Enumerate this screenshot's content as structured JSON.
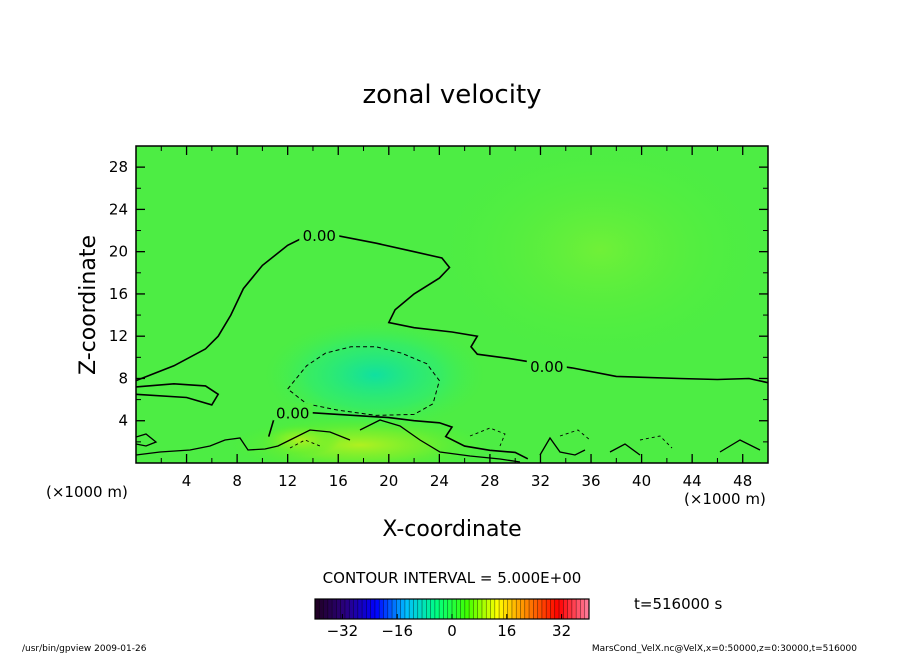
{
  "chart_data": {
    "type": "heatmap",
    "title": "zonal velocity",
    "xlabel": "X-coordinate",
    "ylabel": "Z-coordinate",
    "x_unit_left": "(×1000 m)",
    "x_unit_right": "(×1000 m)",
    "xlim": [
      0,
      50
    ],
    "ylim": [
      0,
      30
    ],
    "xticks": [
      4,
      8,
      12,
      16,
      20,
      24,
      28,
      32,
      36,
      40,
      44,
      48
    ],
    "yticks": [
      4,
      8,
      12,
      16,
      20,
      24,
      28
    ],
    "contour_interval_text": "CONTOUR INTERVAL = 5.000E+00",
    "time_text": "t=516000 s",
    "colorbar": {
      "min": -40,
      "max": 40,
      "ticks": [
        -32,
        -16,
        0,
        16,
        32
      ],
      "stops": [
        "#200020",
        "#2a0080",
        "#0000ff",
        "#00c0ff",
        "#00ff80",
        "#40ff00",
        "#ffff00",
        "#ff8000",
        "#ff0000",
        "#ff80a0"
      ]
    },
    "contour_labels": [
      {
        "text": "0.00",
        "x": 14.5,
        "y": 21.6
      },
      {
        "text": "0.00",
        "x": 32.5,
        "y": 9.2
      },
      {
        "text": "0.00",
        "x": 12.4,
        "y": 4.8
      }
    ],
    "zero_contour_upper": [
      [
        0,
        7.8
      ],
      [
        3,
        9.2
      ],
      [
        5.5,
        10.8
      ],
      [
        6.5,
        12
      ],
      [
        7.5,
        14
      ],
      [
        8.5,
        16.5
      ],
      [
        10,
        18.7
      ],
      [
        12,
        20.6
      ],
      [
        13,
        21.2
      ],
      [
        16,
        21.5
      ],
      [
        19,
        20.8
      ],
      [
        22,
        20
      ],
      [
        24.2,
        19.4
      ],
      [
        24.8,
        18.5
      ],
      [
        24,
        17.5
      ],
      [
        22,
        16
      ],
      [
        20.5,
        14.5
      ],
      [
        20,
        13.3
      ],
      [
        22,
        12.8
      ],
      [
        25,
        12.4
      ],
      [
        27,
        12
      ],
      [
        26.5,
        11
      ],
      [
        27,
        10.3
      ],
      [
        29.5,
        9.9
      ],
      [
        31.5,
        9.5
      ],
      [
        34.5,
        9
      ],
      [
        38,
        8.2
      ],
      [
        43,
        8
      ],
      [
        46,
        7.9
      ],
      [
        48.5,
        8
      ],
      [
        50,
        7.6
      ]
    ],
    "zero_contour_loop": [
      [
        0,
        6.5
      ],
      [
        4,
        6.2
      ],
      [
        6,
        5.5
      ],
      [
        6.5,
        6.5
      ],
      [
        5.5,
        7.3
      ],
      [
        3,
        7.5
      ],
      [
        0,
        7.2
      ]
    ],
    "zero_contour_lower": [
      [
        10.5,
        2.5
      ],
      [
        11,
        4.5
      ],
      [
        12,
        4.9
      ],
      [
        16,
        4.6
      ],
      [
        20,
        4.3
      ],
      [
        22,
        4
      ],
      [
        24,
        3.8
      ],
      [
        25,
        3.4
      ],
      [
        24.5,
        2.5
      ],
      [
        26,
        1.6
      ],
      [
        28,
        1.2
      ],
      [
        30,
        1
      ],
      [
        31,
        0.4
      ]
    ],
    "negative_contour": [
      [
        12,
        7
      ],
      [
        13.5,
        9.2
      ],
      [
        15,
        10.4
      ],
      [
        17,
        11
      ],
      [
        19,
        11
      ],
      [
        21,
        10.4
      ],
      [
        23,
        9.4
      ],
      [
        24,
        7.8
      ],
      [
        23.5,
        5.6
      ],
      [
        22,
        4.6
      ],
      [
        19,
        4.5
      ],
      [
        16,
        5
      ],
      [
        13.5,
        5.6
      ],
      [
        12,
        7
      ]
    ],
    "footer_left": "/usr/bin/gpview  2009-01-26",
    "footer_right": "MarsCond_VelX.nc@VelX,x=0:50000,z=0:30000,t=516000"
  }
}
